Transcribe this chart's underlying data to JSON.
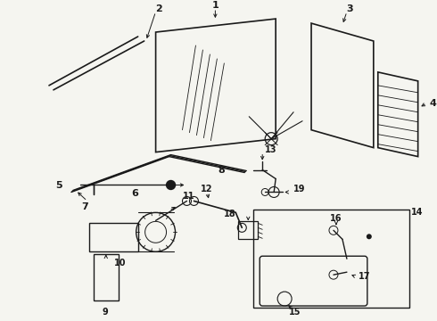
{
  "bg_color": "#f5f5f0",
  "line_color": "#1a1a1a",
  "fig_width": 4.9,
  "fig_height": 3.6,
  "dpi": 100
}
